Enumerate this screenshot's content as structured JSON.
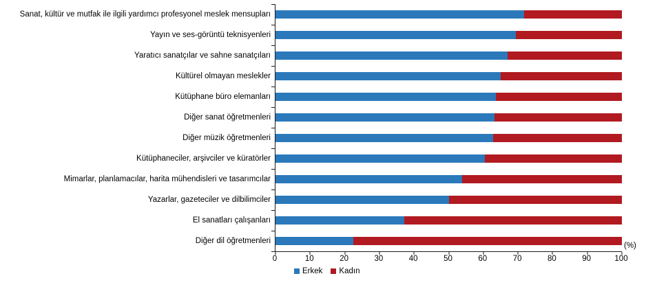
{
  "chart_data": {
    "type": "bar",
    "orientation": "horizontal",
    "stacked": true,
    "title": "",
    "xlabel": "(%)",
    "ylabel": "",
    "xlim": [
      0,
      100
    ],
    "x_ticks": [
      0,
      10,
      20,
      30,
      40,
      50,
      60,
      70,
      80,
      90,
      100
    ],
    "grid": false,
    "legend_position": "bottom",
    "categories": [
      "Sanat, kültür ve mutfak ile ilgili yardımcı profesyonel meslek mensupları",
      "Yayın ve ses-görüntü teknisyenleri",
      "Yaratıcı sanatçılar ve sahne sanatçıları",
      "Kültürel olmayan meslekler",
      "Kütüphane büro elemanları",
      "Diğer sanat öğretmenleri",
      "Diğer müzik öğretmenleri",
      "Kütüphaneciler, arşivciler ve küratörler",
      "Mimarlar, planlamacılar, harita mühendisleri ve tasarımcılar",
      "Yazarlar, gazeteciler ve dilbilimciler",
      "El sanatları çalışanları",
      "Diğer dil öğretmenleri"
    ],
    "series": [
      {
        "name": "Erkek",
        "color": "#2b79bb",
        "values": [
          71.8,
          69.4,
          67.0,
          65.0,
          63.7,
          63.3,
          62.9,
          60.4,
          53.8,
          50.0,
          37.1,
          22.4
        ]
      },
      {
        "name": "Kadın",
        "color": "#b11a20",
        "values": [
          28.2,
          30.6,
          33.0,
          35.0,
          36.3,
          36.7,
          37.1,
          39.6,
          46.2,
          50.0,
          62.9,
          77.6
        ]
      }
    ]
  },
  "axis": {
    "unit_label": "(%)"
  },
  "legend": {
    "items": [
      {
        "label": "Erkek",
        "color": "#2b79bb"
      },
      {
        "label": "Kadın",
        "color": "#b11a20"
      }
    ]
  }
}
